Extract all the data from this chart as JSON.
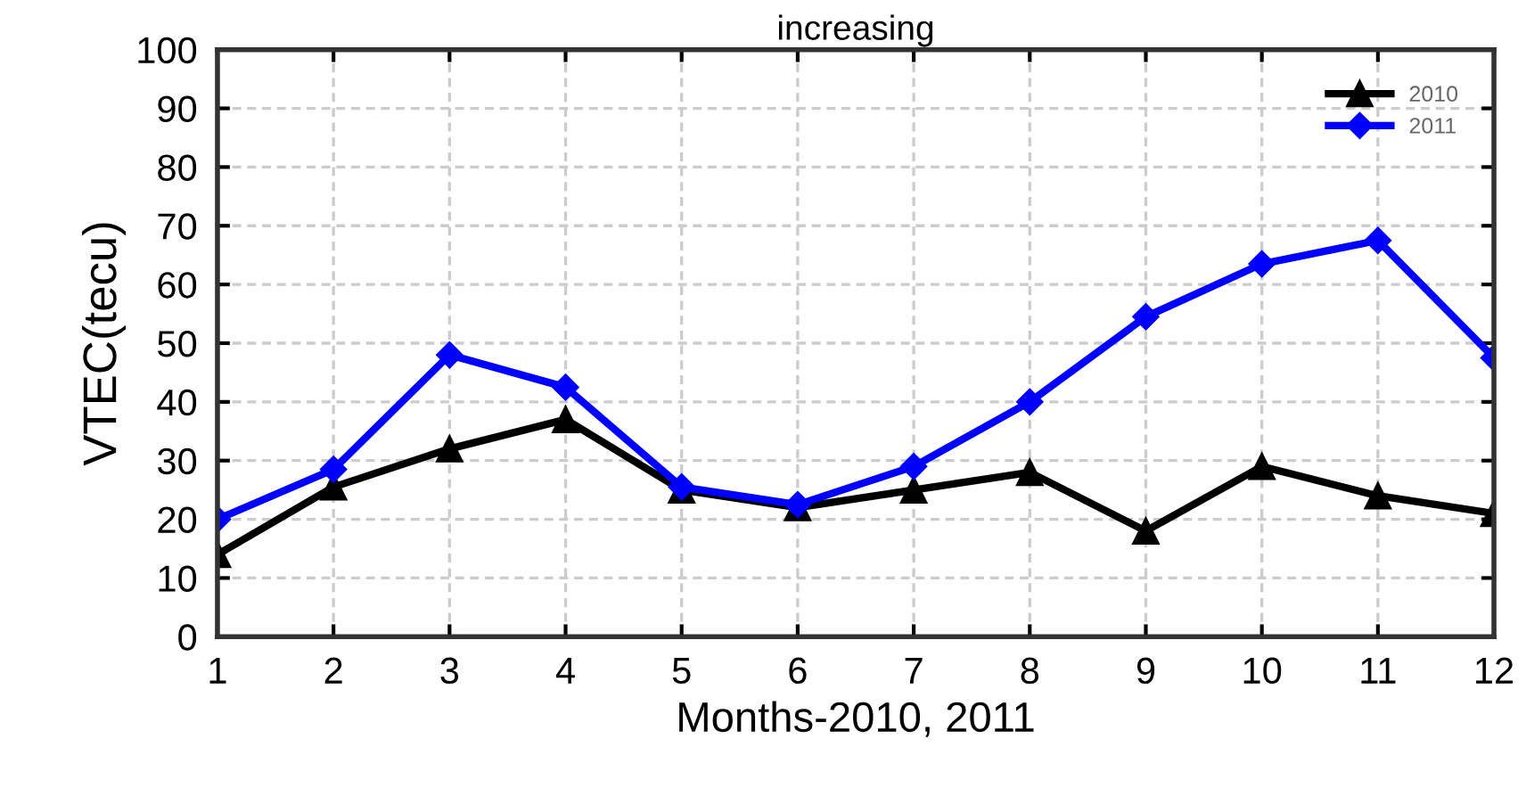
{
  "chart_data": {
    "type": "line",
    "title": "increasing",
    "xlabel": "Months-2010, 2011",
    "ylabel": "VTEC(tecu)",
    "x": [
      1,
      2,
      3,
      4,
      5,
      6,
      7,
      8,
      9,
      10,
      11,
      12
    ],
    "series": [
      {
        "name": "2010",
        "color": "#000000",
        "marker": "triangle",
        "values": [
          14,
          25.5,
          32,
          37,
          25,
          22,
          25,
          28,
          18,
          29,
          24,
          21
        ]
      },
      {
        "name": "2011",
        "color": "#0000ff",
        "marker": "diamond",
        "values": [
          20,
          28.5,
          48,
          42.5,
          25.5,
          22.5,
          29,
          40,
          54.5,
          63.5,
          67.5,
          47.5
        ]
      }
    ],
    "xlim": [
      1,
      12
    ],
    "xticks": [
      1,
      2,
      3,
      4,
      5,
      6,
      7,
      8,
      9,
      10,
      11,
      12
    ],
    "ylim": [
      0,
      100
    ],
    "yticks": [
      0,
      10,
      20,
      30,
      40,
      50,
      60,
      70,
      80,
      90,
      100
    ],
    "grid": true,
    "legend": "top right",
    "line_style": "solid"
  }
}
